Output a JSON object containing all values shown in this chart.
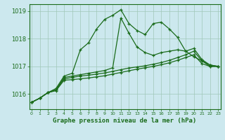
{
  "bg_color": "#cce8ee",
  "grid_color": "#a0c8b8",
  "line_color": "#1a6b1a",
  "title": "Graphe pression niveau de la mer (hPa)",
  "ylabel_ticks": [
    1016,
    1017,
    1018,
    1019
  ],
  "xlim": [
    -0.3,
    23.3
  ],
  "ylim": [
    1015.45,
    1019.25
  ],
  "hours": [
    0,
    1,
    2,
    3,
    4,
    5,
    6,
    7,
    8,
    9,
    10,
    11,
    12,
    13,
    14,
    15,
    16,
    17,
    18,
    19,
    20,
    21,
    22,
    23
  ],
  "line1": [
    1015.7,
    1015.85,
    1016.05,
    1016.2,
    1016.65,
    1016.75,
    1017.6,
    1017.85,
    1018.35,
    1018.7,
    1018.85,
    1019.05,
    1018.55,
    1018.3,
    1018.15,
    1018.55,
    1018.6,
    1018.35,
    1018.05,
    1017.55,
    1017.35,
    1017.2,
    1017.0,
    1017.0
  ],
  "line2": [
    1015.7,
    1015.85,
    1016.05,
    1016.15,
    1016.6,
    1016.65,
    1016.7,
    1016.75,
    1016.8,
    1016.85,
    1016.95,
    1018.75,
    1018.2,
    1017.7,
    1017.5,
    1017.4,
    1017.5,
    1017.55,
    1017.6,
    1017.55,
    1017.65,
    1017.25,
    1017.05,
    1017.0
  ],
  "line3": [
    1015.7,
    1015.85,
    1016.05,
    1016.15,
    1016.55,
    1016.6,
    1016.65,
    1016.68,
    1016.72,
    1016.76,
    1016.82,
    1016.88,
    1016.94,
    1016.98,
    1017.02,
    1017.08,
    1017.14,
    1017.22,
    1017.32,
    1017.42,
    1017.55,
    1017.2,
    1017.05,
    1017.0
  ],
  "line4": [
    1015.7,
    1015.85,
    1016.05,
    1016.12,
    1016.5,
    1016.52,
    1016.55,
    1016.58,
    1016.62,
    1016.66,
    1016.72,
    1016.78,
    1016.84,
    1016.9,
    1016.95,
    1017.0,
    1017.06,
    1017.13,
    1017.22,
    1017.32,
    1017.42,
    1017.1,
    1017.0,
    1017.0
  ]
}
